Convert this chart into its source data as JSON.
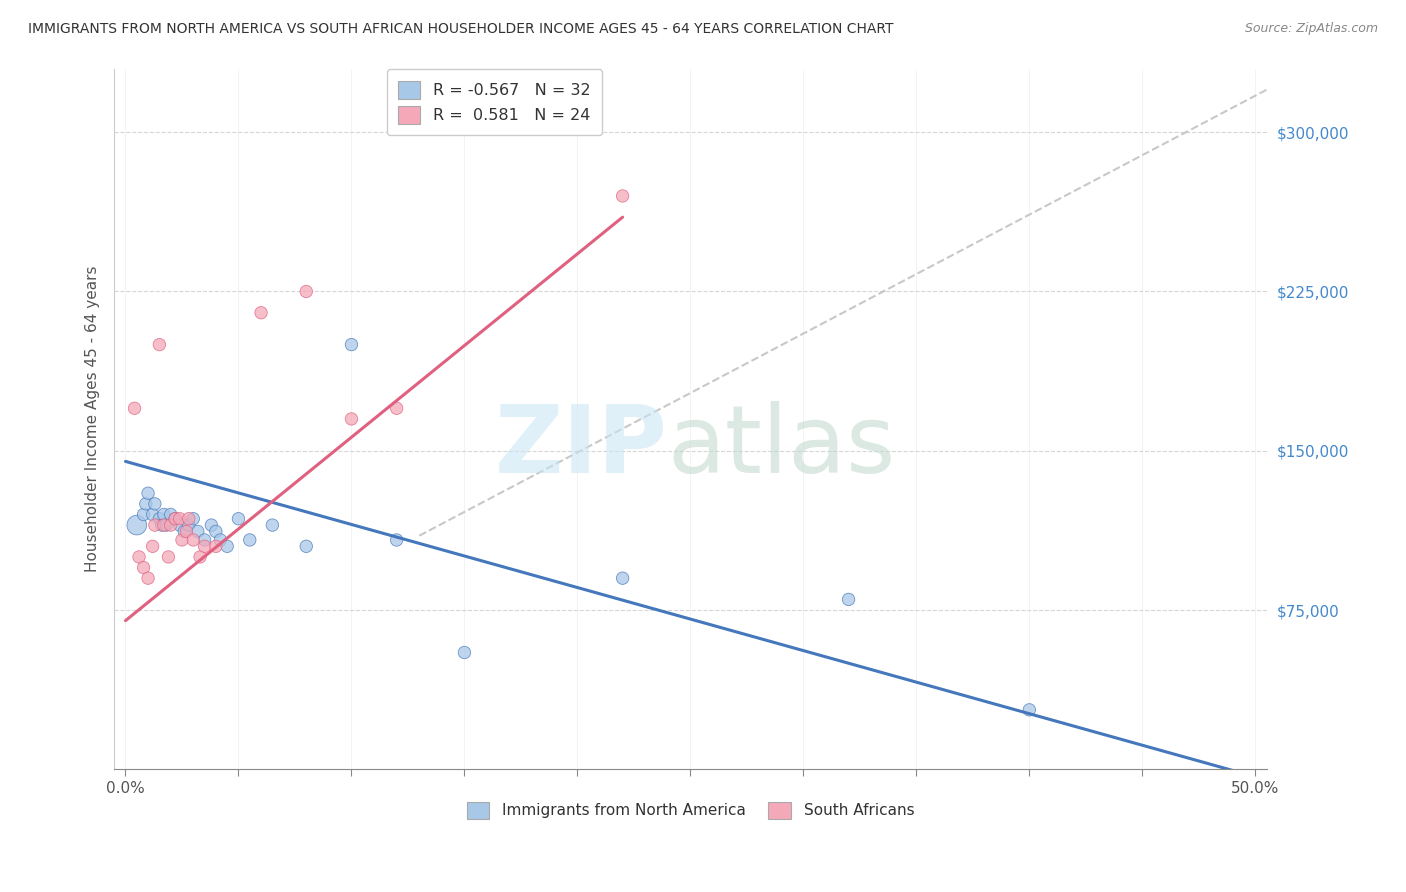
{
  "title": "IMMIGRANTS FROM NORTH AMERICA VS SOUTH AFRICAN HOUSEHOLDER INCOME AGES 45 - 64 YEARS CORRELATION CHART",
  "source": "Source: ZipAtlas.com",
  "ylabel": "Householder Income Ages 45 - 64 years",
  "xlim": [
    -0.005,
    0.505
  ],
  "ylim": [
    0,
    330000
  ],
  "xticks": [
    0.0,
    0.05,
    0.1,
    0.15,
    0.2,
    0.25,
    0.3,
    0.35,
    0.4,
    0.45,
    0.5
  ],
  "xticklabels_show": [
    "0.0%",
    "",
    "",
    "",
    "",
    "",
    "",
    "",
    "",
    "",
    "50.0%"
  ],
  "yticks": [
    0,
    75000,
    150000,
    225000,
    300000
  ],
  "yticklabels": [
    "",
    "$75,000",
    "$150,000",
    "$225,000",
    "$300,000"
  ],
  "blue_R": "-0.567",
  "blue_N": "32",
  "pink_R": "0.581",
  "pink_N": "24",
  "legend_label_blue": "Immigrants from North America",
  "legend_label_pink": "South Africans",
  "blue_color": "#a8c8e8",
  "pink_color": "#f4a8b8",
  "blue_line_color": "#4477bb",
  "pink_line_color": "#e06080",
  "grid_color": "#cccccc",
  "blue_scatter_x": [
    0.005,
    0.008,
    0.009,
    0.01,
    0.012,
    0.013,
    0.015,
    0.016,
    0.017,
    0.018,
    0.02,
    0.022,
    0.024,
    0.026,
    0.028,
    0.03,
    0.032,
    0.035,
    0.038,
    0.04,
    0.042,
    0.045,
    0.05,
    0.055,
    0.065,
    0.08,
    0.1,
    0.12,
    0.15,
    0.22,
    0.32,
    0.4
  ],
  "blue_scatter_y": [
    115000,
    120000,
    125000,
    130000,
    120000,
    125000,
    118000,
    115000,
    120000,
    115000,
    120000,
    118000,
    115000,
    112000,
    115000,
    118000,
    112000,
    108000,
    115000,
    112000,
    108000,
    105000,
    118000,
    108000,
    115000,
    105000,
    200000,
    108000,
    55000,
    90000,
    80000,
    28000
  ],
  "blue_scatter_sizes": [
    200,
    80,
    80,
    80,
    80,
    80,
    80,
    80,
    80,
    80,
    80,
    80,
    80,
    80,
    80,
    80,
    80,
    80,
    80,
    80,
    80,
    80,
    80,
    80,
    80,
    80,
    80,
    80,
    80,
    80,
    80,
    80
  ],
  "pink_scatter_x": [
    0.004,
    0.006,
    0.008,
    0.01,
    0.012,
    0.013,
    0.015,
    0.017,
    0.019,
    0.02,
    0.022,
    0.024,
    0.025,
    0.027,
    0.028,
    0.03,
    0.033,
    0.035,
    0.04,
    0.06,
    0.08,
    0.1,
    0.12,
    0.22
  ],
  "pink_scatter_y": [
    170000,
    100000,
    95000,
    90000,
    105000,
    115000,
    200000,
    115000,
    100000,
    115000,
    118000,
    118000,
    108000,
    112000,
    118000,
    108000,
    100000,
    105000,
    105000,
    215000,
    225000,
    165000,
    170000,
    270000
  ],
  "pink_scatter_sizes": [
    80,
    80,
    80,
    80,
    80,
    80,
    80,
    80,
    80,
    80,
    80,
    80,
    80,
    80,
    80,
    80,
    80,
    80,
    80,
    80,
    80,
    80,
    80,
    80
  ],
  "blue_line_x": [
    0.0,
    0.505
  ],
  "blue_line_y": [
    145000,
    -5000
  ],
  "pink_line_x": [
    0.0,
    0.22
  ],
  "pink_line_y": [
    70000,
    260000
  ],
  "dash_line_x": [
    0.13,
    0.505
  ],
  "dash_line_y": [
    110000,
    320000
  ]
}
